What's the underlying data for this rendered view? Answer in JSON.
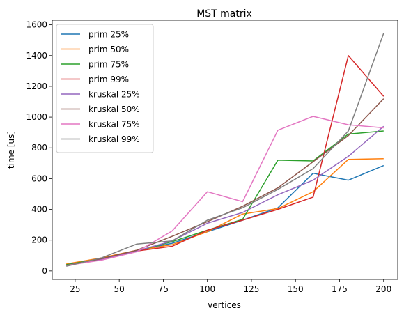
{
  "chart_data": {
    "type": "line",
    "title": "MST matrix",
    "xlabel": "vertices",
    "ylabel": "time [us]",
    "xlim": [
      12,
      208
    ],
    "ylim": [
      -55,
      1630
    ],
    "x_ticks": [
      25,
      50,
      75,
      100,
      125,
      150,
      175,
      200
    ],
    "y_ticks": [
      0,
      200,
      400,
      600,
      800,
      1000,
      1200,
      1400,
      1600
    ],
    "grid": false,
    "legend_position": "top-left",
    "x": [
      20,
      40,
      60,
      80,
      100,
      120,
      140,
      160,
      180,
      200
    ],
    "series": [
      {
        "name": "prim 25%",
        "color": "#1f77b4",
        "values": [
          40,
          80,
          130,
          180,
          255,
          330,
          410,
          635,
          590,
          685
        ]
      },
      {
        "name": "prim 50%",
        "color": "#ff7f0e",
        "values": [
          45,
          85,
          135,
          170,
          255,
          370,
          405,
          515,
          725,
          730
        ]
      },
      {
        "name": "prim 75%",
        "color": "#2ca02c",
        "values": [
          40,
          80,
          130,
          190,
          265,
          335,
          720,
          715,
          890,
          910
        ]
      },
      {
        "name": "prim 99%",
        "color": "#d62728",
        "values": [
          35,
          75,
          130,
          160,
          265,
          330,
          400,
          480,
          1400,
          1135
        ]
      },
      {
        "name": "kruskal 25%",
        "color": "#9467bd",
        "values": [
          35,
          75,
          130,
          195,
          310,
          380,
          495,
          590,
          745,
          940
        ]
      },
      {
        "name": "kruskal 50%",
        "color": "#8c564b",
        "values": [
          35,
          80,
          135,
          225,
          320,
          420,
          540,
          710,
          880,
          1120
        ]
      },
      {
        "name": "kruskal 75%",
        "color": "#e377c2",
        "values": [
          35,
          70,
          125,
          260,
          515,
          450,
          915,
          1005,
          950,
          930
        ]
      },
      {
        "name": "kruskal 99%",
        "color": "#7f7f7f",
        "values": [
          30,
          85,
          175,
          195,
          330,
          410,
          530,
          665,
          910,
          1545
        ]
      }
    ]
  }
}
